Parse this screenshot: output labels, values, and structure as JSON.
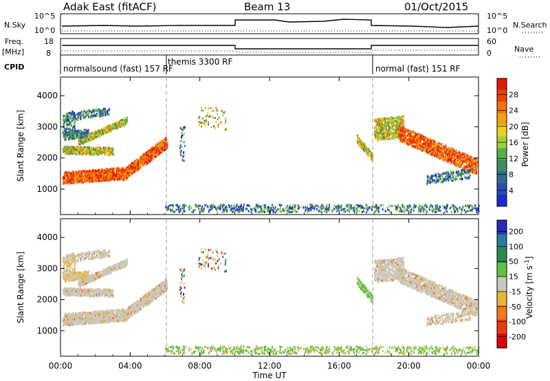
{
  "header": {
    "radar": "Adak East (fitACF)",
    "beam": "Beam 13",
    "date": "01/Oct/2015"
  },
  "panels": {
    "nsky": {
      "left_label": "N.Sky",
      "right_label": "N.Search",
      "left_ticks": [
        "10^5",
        "10^0"
      ],
      "right_ticks": [
        "10^5",
        "10^0"
      ]
    },
    "freq": {
      "left_label_1": "Freq.",
      "left_label_2": "[MHz]",
      "right_label": "Nave",
      "left_ticks": [
        "18",
        "8"
      ],
      "right_ticks": [
        "60",
        "0"
      ]
    },
    "cpid": {
      "label": "CPID",
      "programs": [
        "normalsound (fast) 157 RF",
        "themis 3300 RF",
        "normal (fast) 151 RF"
      ]
    }
  },
  "chart_data": [
    {
      "type": "heatmap",
      "name": "power",
      "ylabel": "Slant Range [km]",
      "ylim": [
        180,
        4600
      ],
      "yticks": [
        1000,
        2000,
        3000,
        4000
      ],
      "xlim": [
        0,
        24
      ],
      "colorbar": {
        "label": "Power [dB]",
        "ticks": [
          "4",
          "8",
          "12",
          "16",
          "20",
          "24",
          "28"
        ],
        "colors": [
          "#1a2bd6",
          "#2a4db0",
          "#2f6d8a",
          "#3c8c5e",
          "#56b04a",
          "#9fd03a",
          "#e8d21a",
          "#f5a00f",
          "#f2720c",
          "#e8420a",
          "#e01a06"
        ]
      }
    },
    {
      "type": "heatmap",
      "name": "velocity",
      "ylabel": "Slant Range [km]",
      "ylim": [
        180,
        4600
      ],
      "yticks": [
        1000,
        2000,
        3000,
        4000
      ],
      "xlim": [
        0,
        24
      ],
      "colorbar": {
        "label": "Velocity [m s^-1]",
        "ticks": [
          "200",
          "100",
          "50",
          "15",
          "-15",
          "-50",
          "-100",
          "-200"
        ],
        "colors": [
          "#2a2ab8",
          "#2a7a9a",
          "#2b8a4a",
          "#5ec43c",
          "#c8c8c0",
          "#e8b43c",
          "#f07a1c",
          "#ea3a10",
          "#e00000"
        ]
      }
    }
  ],
  "time_axis": {
    "label": "Time UT",
    "ticks": [
      "00:00",
      "04:00",
      "08:00",
      "12:00",
      "16:00",
      "20:00",
      "00:00"
    ]
  }
}
